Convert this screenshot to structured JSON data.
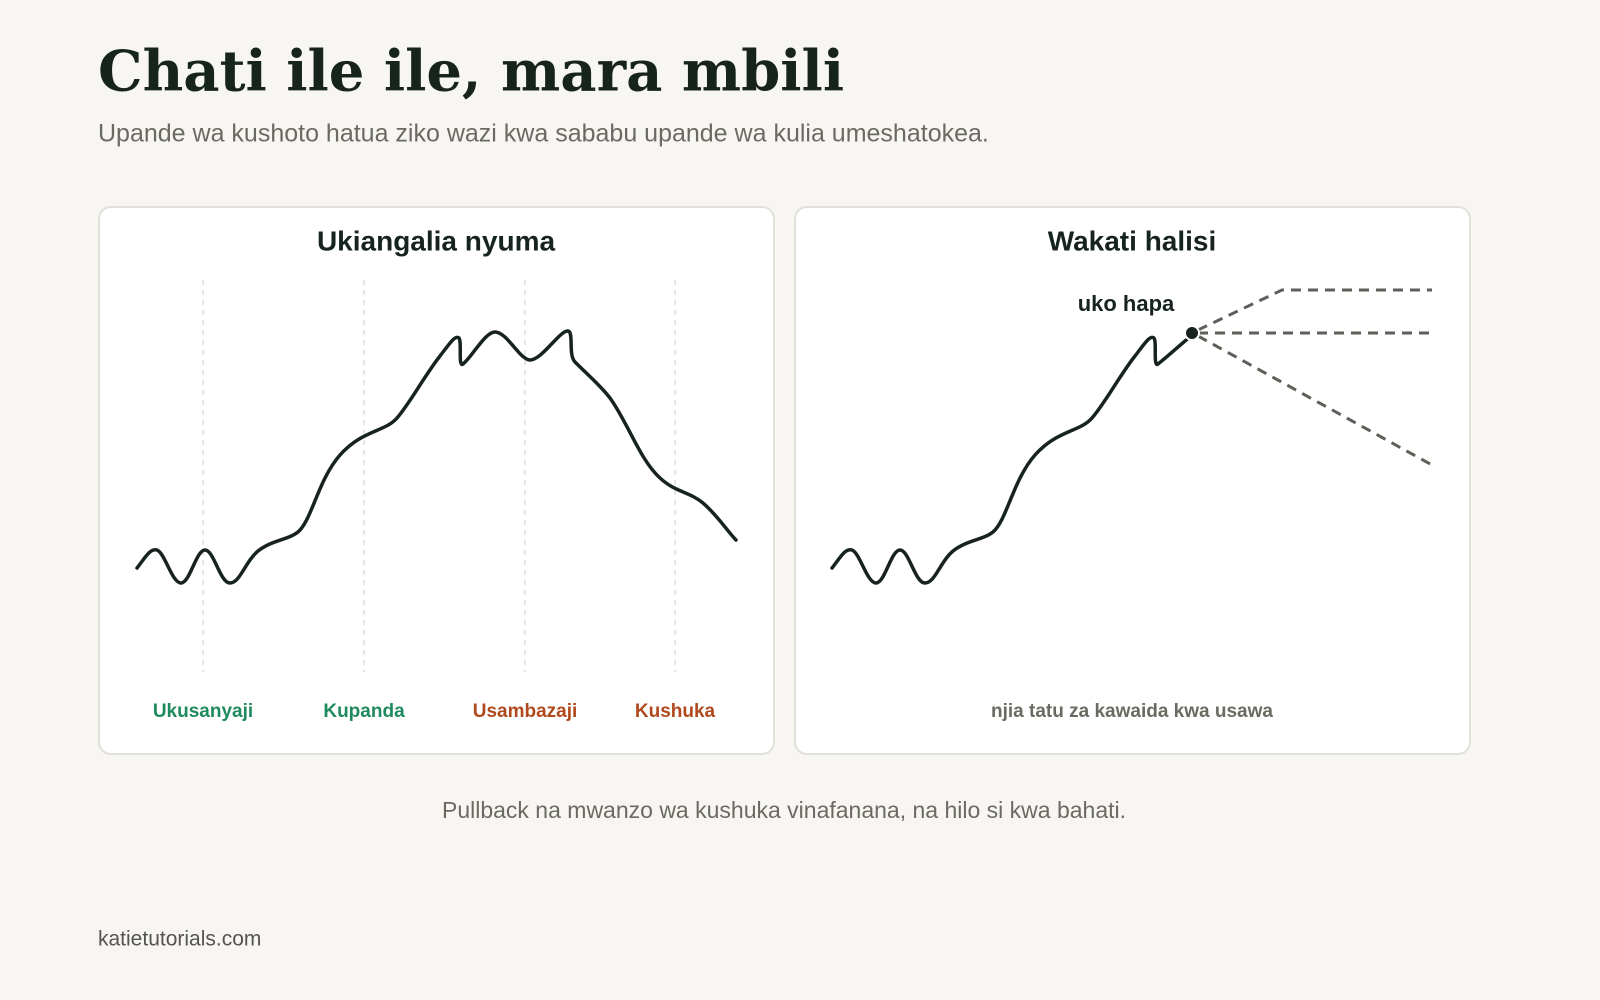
{
  "header": {
    "title": "Chati ile ile, mara mbili",
    "subtitle": "Upande wa kushoto hatua ziko wazi kwa sababu upande wa kulia umeshatokea."
  },
  "panels": [
    {
      "title": "Ukiangalia nyuma",
      "phases": [
        "Ukusanyaji",
        "Kupanda",
        "Usambazaji",
        "Kushuka"
      ]
    },
    {
      "title": "Wakati halisi",
      "marker_label": "uko hapa",
      "caption": "njia tatu za kawaida kwa usawa"
    }
  ],
  "caption": "Pullback na mwanzo wa kushuka vinafanana, na hilo si kwa bahati.",
  "footer": "katietutorials.com"
}
